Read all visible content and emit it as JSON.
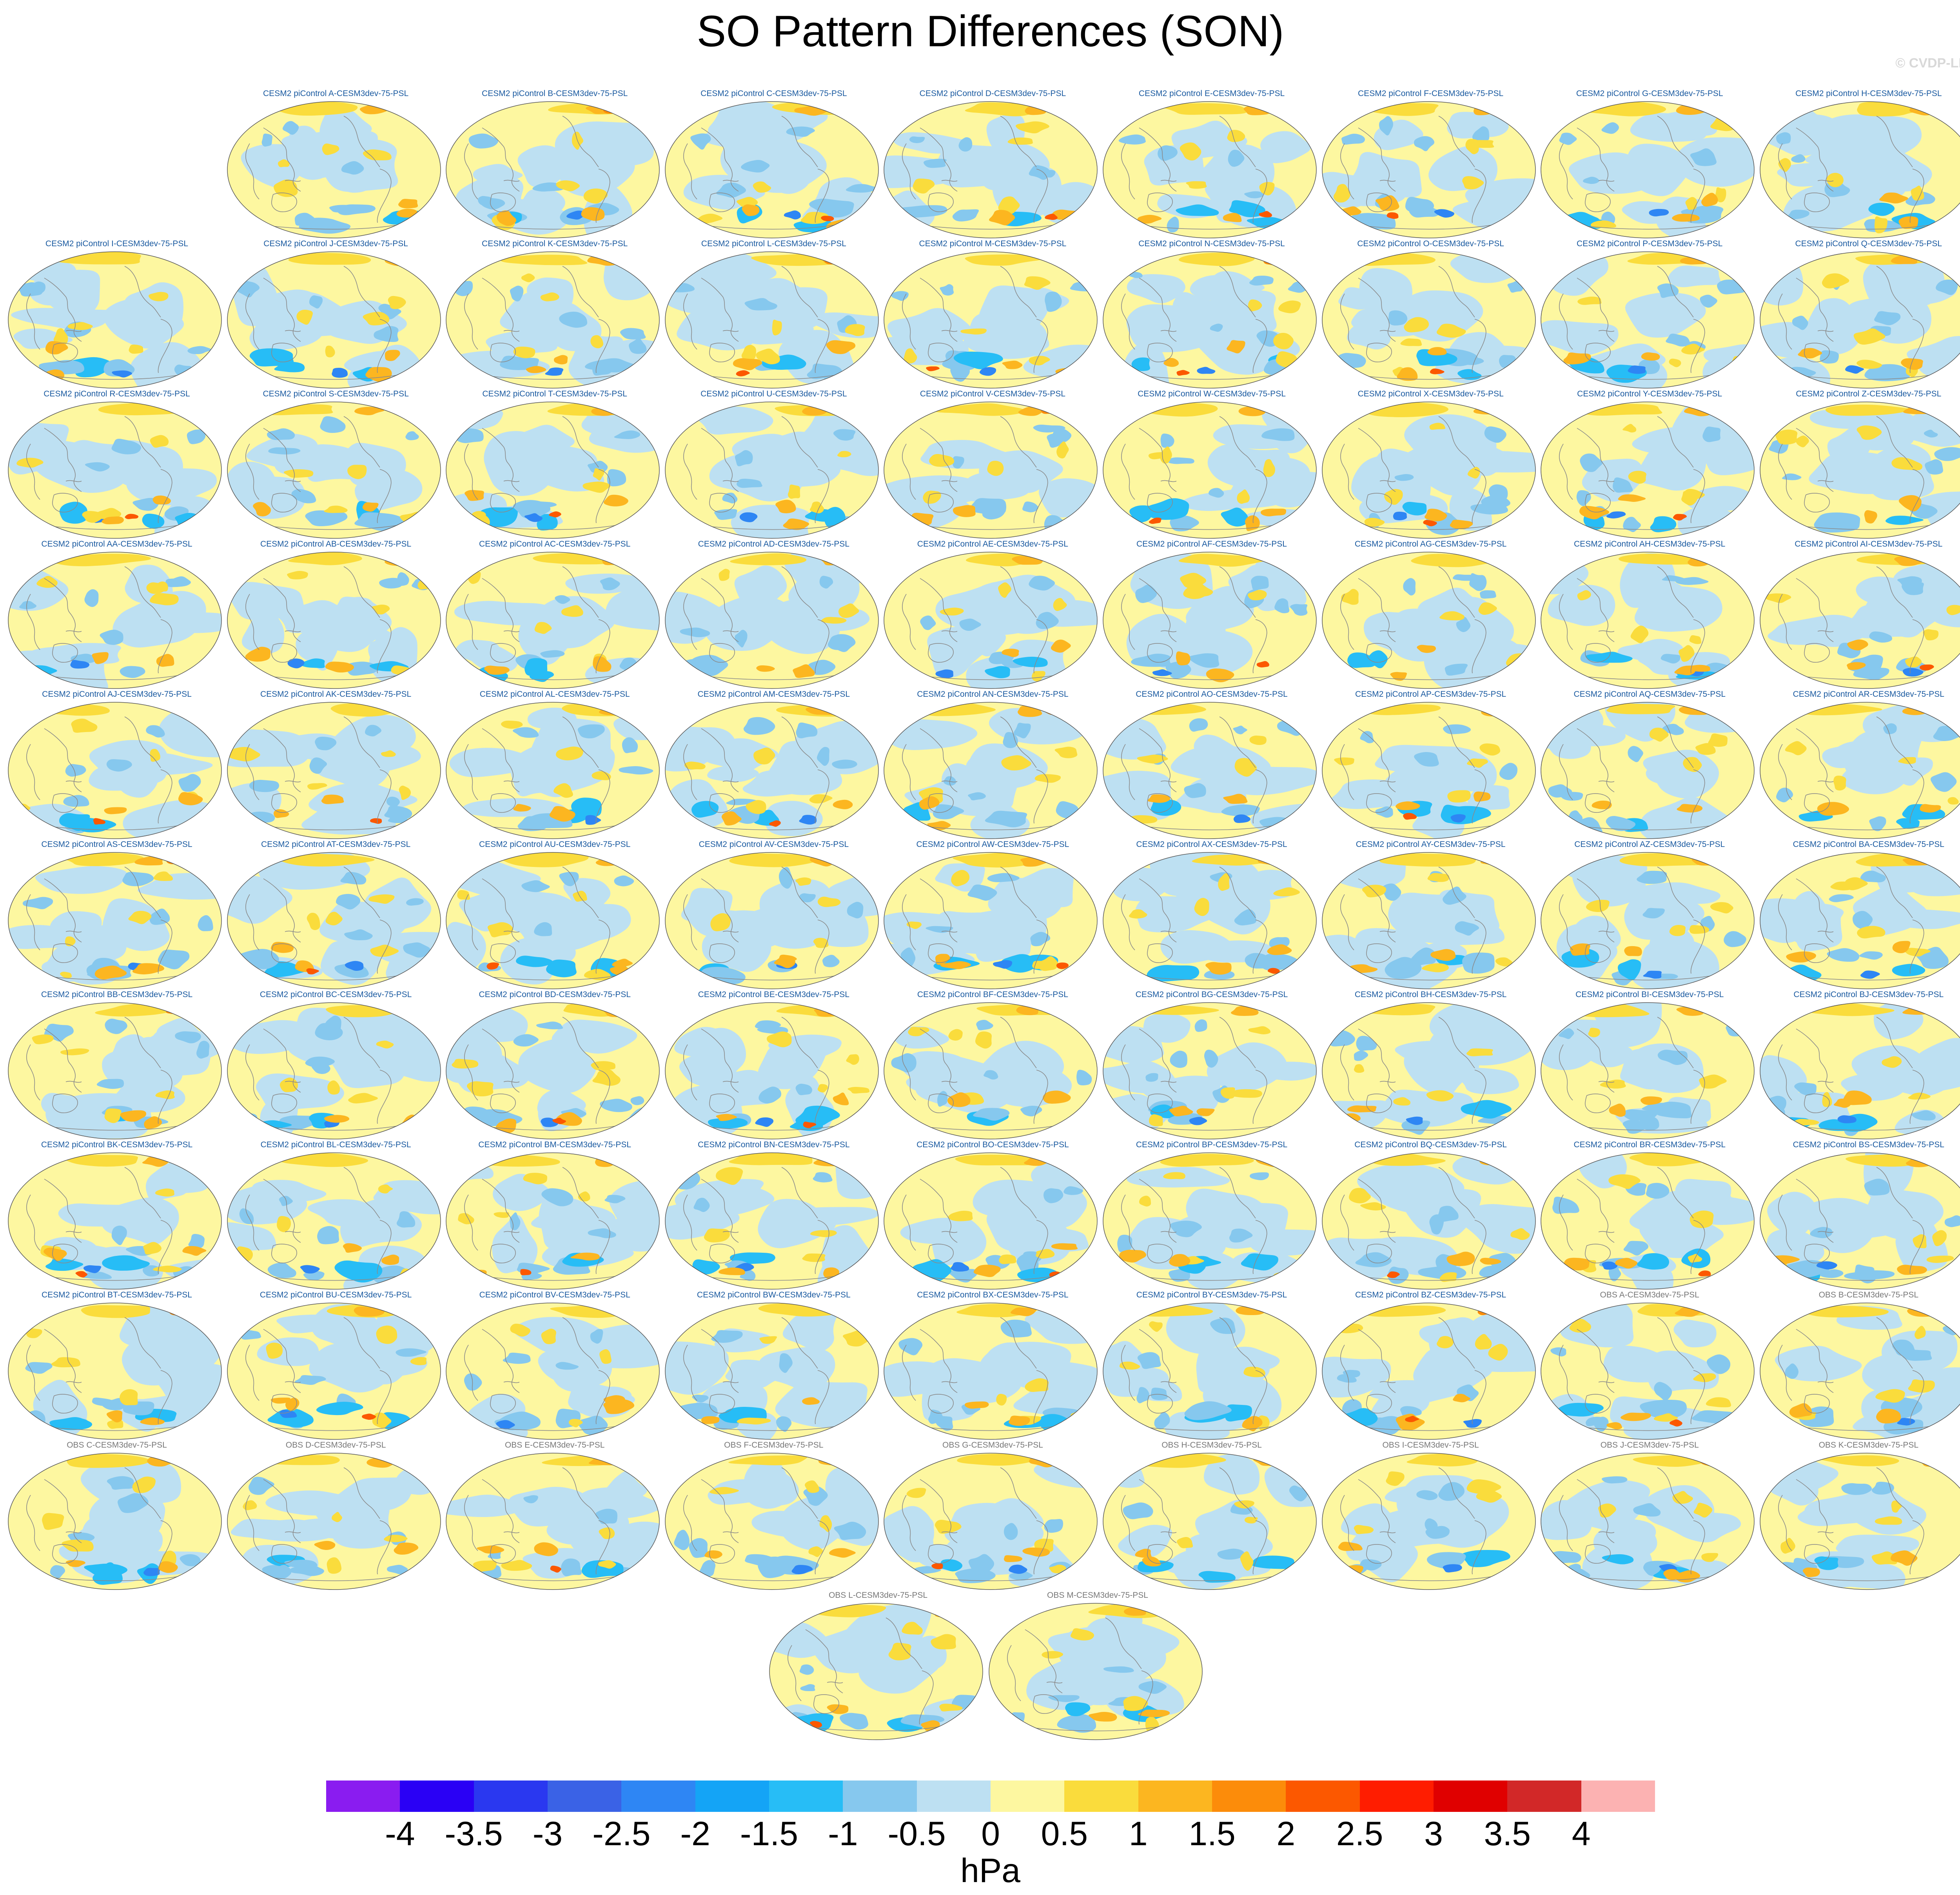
{
  "title": "SO Pattern Differences (SON)",
  "copyright": "© CVDP-LE",
  "units": "hPa",
  "colorbar": {
    "colors": [
      "#8a1cf0",
      "#2a00f5",
      "#2a38f0",
      "#3a62e6",
      "#2e86f4",
      "#14a4f6",
      "#27bdf6",
      "#86c8ee",
      "#bde0f2",
      "#fdf7a0",
      "#fadc3c",
      "#fcb620",
      "#fc8c0a",
      "#fc5800",
      "#ff1d00",
      "#e00000",
      "#d22828",
      "#fcb2b2"
    ],
    "tick_labels": [
      "-4",
      "-3.5",
      "-3",
      "-2.5",
      "-2",
      "-1.5",
      "-1",
      "-0.5",
      "0",
      "0.5",
      "1",
      "1.5",
      "2",
      "2.5",
      "3",
      "3.5",
      "4"
    ]
  },
  "panels": [
    {
      "label": "CESM2 piControl A-CESM3dev-75-PSL",
      "type": "model"
    },
    {
      "label": "CESM2 piControl B-CESM3dev-75-PSL",
      "type": "model"
    },
    {
      "label": "CESM2 piControl C-CESM3dev-75-PSL",
      "type": "model"
    },
    {
      "label": "CESM2 piControl D-CESM3dev-75-PSL",
      "type": "model"
    },
    {
      "label": "CESM2 piControl E-CESM3dev-75-PSL",
      "type": "model"
    },
    {
      "label": "CESM2 piControl F-CESM3dev-75-PSL",
      "type": "model"
    },
    {
      "label": "CESM2 piControl G-CESM3dev-75-PSL",
      "type": "model"
    },
    {
      "label": "CESM2 piControl H-CESM3dev-75-PSL",
      "type": "model"
    },
    {
      "label": "CESM2 piControl I-CESM3dev-75-PSL",
      "type": "model"
    },
    {
      "label": "CESM2 piControl J-CESM3dev-75-PSL",
      "type": "model"
    },
    {
      "label": "CESM2 piControl K-CESM3dev-75-PSL",
      "type": "model"
    },
    {
      "label": "CESM2 piControl L-CESM3dev-75-PSL",
      "type": "model"
    },
    {
      "label": "CESM2 piControl M-CESM3dev-75-PSL",
      "type": "model"
    },
    {
      "label": "CESM2 piControl N-CESM3dev-75-PSL",
      "type": "model"
    },
    {
      "label": "CESM2 piControl O-CESM3dev-75-PSL",
      "type": "model"
    },
    {
      "label": "CESM2 piControl P-CESM3dev-75-PSL",
      "type": "model"
    },
    {
      "label": "CESM2 piControl Q-CESM3dev-75-PSL",
      "type": "model"
    },
    {
      "label": "CESM2 piControl R-CESM3dev-75-PSL",
      "type": "model"
    },
    {
      "label": "CESM2 piControl S-CESM3dev-75-PSL",
      "type": "model"
    },
    {
      "label": "CESM2 piControl T-CESM3dev-75-PSL",
      "type": "model"
    },
    {
      "label": "CESM2 piControl U-CESM3dev-75-PSL",
      "type": "model"
    },
    {
      "label": "CESM2 piControl V-CESM3dev-75-PSL",
      "type": "model"
    },
    {
      "label": "CESM2 piControl W-CESM3dev-75-PSL",
      "type": "model"
    },
    {
      "label": "CESM2 piControl X-CESM3dev-75-PSL",
      "type": "model"
    },
    {
      "label": "CESM2 piControl Y-CESM3dev-75-PSL",
      "type": "model"
    },
    {
      "label": "CESM2 piControl Z-CESM3dev-75-PSL",
      "type": "model"
    },
    {
      "label": "CESM2 piControl AA-CESM3dev-75-PSL",
      "type": "model"
    },
    {
      "label": "CESM2 piControl AB-CESM3dev-75-PSL",
      "type": "model"
    },
    {
      "label": "CESM2 piControl AC-CESM3dev-75-PSL",
      "type": "model"
    },
    {
      "label": "CESM2 piControl AD-CESM3dev-75-PSL",
      "type": "model"
    },
    {
      "label": "CESM2 piControl AE-CESM3dev-75-PSL",
      "type": "model"
    },
    {
      "label": "CESM2 piControl AF-CESM3dev-75-PSL",
      "type": "model"
    },
    {
      "label": "CESM2 piControl AG-CESM3dev-75-PSL",
      "type": "model"
    },
    {
      "label": "CESM2 piControl AH-CESM3dev-75-PSL",
      "type": "model"
    },
    {
      "label": "CESM2 piControl AI-CESM3dev-75-PSL",
      "type": "model"
    },
    {
      "label": "CESM2 piControl AJ-CESM3dev-75-PSL",
      "type": "model"
    },
    {
      "label": "CESM2 piControl AK-CESM3dev-75-PSL",
      "type": "model"
    },
    {
      "label": "CESM2 piControl AL-CESM3dev-75-PSL",
      "type": "model"
    },
    {
      "label": "CESM2 piControl AM-CESM3dev-75-PSL",
      "type": "model"
    },
    {
      "label": "CESM2 piControl AN-CESM3dev-75-PSL",
      "type": "model"
    },
    {
      "label": "CESM2 piControl AO-CESM3dev-75-PSL",
      "type": "model"
    },
    {
      "label": "CESM2 piControl AP-CESM3dev-75-PSL",
      "type": "model"
    },
    {
      "label": "CESM2 piControl AQ-CESM3dev-75-PSL",
      "type": "model"
    },
    {
      "label": "CESM2 piControl AR-CESM3dev-75-PSL",
      "type": "model"
    },
    {
      "label": "CESM2 piControl AS-CESM3dev-75-PSL",
      "type": "model"
    },
    {
      "label": "CESM2 piControl AT-CESM3dev-75-PSL",
      "type": "model"
    },
    {
      "label": "CESM2 piControl AU-CESM3dev-75-PSL",
      "type": "model"
    },
    {
      "label": "CESM2 piControl AV-CESM3dev-75-PSL",
      "type": "model"
    },
    {
      "label": "CESM2 piControl AW-CESM3dev-75-PSL",
      "type": "model"
    },
    {
      "label": "CESM2 piControl AX-CESM3dev-75-PSL",
      "type": "model"
    },
    {
      "label": "CESM2 piControl AY-CESM3dev-75-PSL",
      "type": "model"
    },
    {
      "label": "CESM2 piControl AZ-CESM3dev-75-PSL",
      "type": "model"
    },
    {
      "label": "CESM2 piControl BA-CESM3dev-75-PSL",
      "type": "model"
    },
    {
      "label": "CESM2 piControl BB-CESM3dev-75-PSL",
      "type": "model"
    },
    {
      "label": "CESM2 piControl BC-CESM3dev-75-PSL",
      "type": "model"
    },
    {
      "label": "CESM2 piControl BD-CESM3dev-75-PSL",
      "type": "model"
    },
    {
      "label": "CESM2 piControl BE-CESM3dev-75-PSL",
      "type": "model"
    },
    {
      "label": "CESM2 piControl BF-CESM3dev-75-PSL",
      "type": "model"
    },
    {
      "label": "CESM2 piControl BG-CESM3dev-75-PSL",
      "type": "model"
    },
    {
      "label": "CESM2 piControl BH-CESM3dev-75-PSL",
      "type": "model"
    },
    {
      "label": "CESM2 piControl BI-CESM3dev-75-PSL",
      "type": "model"
    },
    {
      "label": "CESM2 piControl BJ-CESM3dev-75-PSL",
      "type": "model"
    },
    {
      "label": "CESM2 piControl BK-CESM3dev-75-PSL",
      "type": "model"
    },
    {
      "label": "CESM2 piControl BL-CESM3dev-75-PSL",
      "type": "model"
    },
    {
      "label": "CESM2 piControl BM-CESM3dev-75-PSL",
      "type": "model"
    },
    {
      "label": "CESM2 piControl BN-CESM3dev-75-PSL",
      "type": "model"
    },
    {
      "label": "CESM2 piControl BO-CESM3dev-75-PSL",
      "type": "model"
    },
    {
      "label": "CESM2 piControl BP-CESM3dev-75-PSL",
      "type": "model"
    },
    {
      "label": "CESM2 piControl BQ-CESM3dev-75-PSL",
      "type": "model"
    },
    {
      "label": "CESM2 piControl BR-CESM3dev-75-PSL",
      "type": "model"
    },
    {
      "label": "CESM2 piControl BS-CESM3dev-75-PSL",
      "type": "model"
    },
    {
      "label": "CESM2 piControl BT-CESM3dev-75-PSL",
      "type": "model"
    },
    {
      "label": "CESM2 piControl BU-CESM3dev-75-PSL",
      "type": "model"
    },
    {
      "label": "CESM2 piControl BV-CESM3dev-75-PSL",
      "type": "model"
    },
    {
      "label": "CESM2 piControl BW-CESM3dev-75-PSL",
      "type": "model"
    },
    {
      "label": "CESM2 piControl BX-CESM3dev-75-PSL",
      "type": "model"
    },
    {
      "label": "CESM2 piControl BY-CESM3dev-75-PSL",
      "type": "model"
    },
    {
      "label": "CESM2 piControl BZ-CESM3dev-75-PSL",
      "type": "model"
    },
    {
      "label": "OBS A-CESM3dev-75-PSL",
      "type": "obs"
    },
    {
      "label": "OBS B-CESM3dev-75-PSL",
      "type": "obs"
    },
    {
      "label": "OBS C-CESM3dev-75-PSL",
      "type": "obs"
    },
    {
      "label": "OBS D-CESM3dev-75-PSL",
      "type": "obs"
    },
    {
      "label": "OBS E-CESM3dev-75-PSL",
      "type": "obs"
    },
    {
      "label": "OBS F-CESM3dev-75-PSL",
      "type": "obs"
    },
    {
      "label": "OBS G-CESM3dev-75-PSL",
      "type": "obs"
    },
    {
      "label": "OBS H-CESM3dev-75-PSL",
      "type": "obs"
    },
    {
      "label": "OBS I-CESM3dev-75-PSL",
      "type": "obs"
    },
    {
      "label": "OBS J-CESM3dev-75-PSL",
      "type": "obs"
    },
    {
      "label": "OBS K-CESM3dev-75-PSL",
      "type": "obs"
    },
    {
      "label": "OBS L-CESM3dev-75-PSL",
      "type": "obs"
    },
    {
      "label": "OBS M-CESM3dev-75-PSL",
      "type": "obs"
    }
  ]
}
